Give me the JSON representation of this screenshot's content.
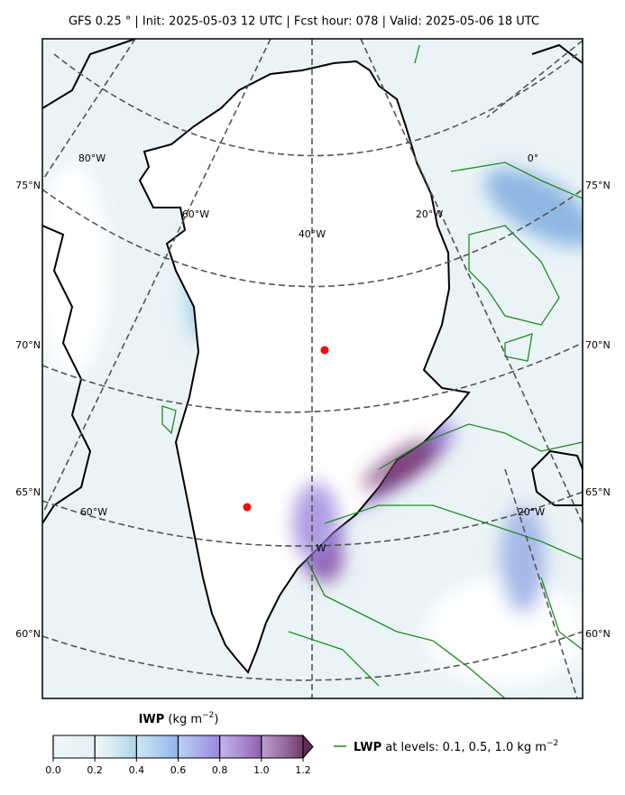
{
  "header": {
    "title": "GFS 0.25 °  |  Init: 2025-05-03 12 UTC  |  Fcst hour: 078  |  Valid: 2025-05-06 18 UTC"
  },
  "map": {
    "lat_labels_left": [
      "75°N",
      "70°N",
      "65°N",
      "60°N"
    ],
    "lat_labels_right": [
      "75°N",
      "70°N",
      "65°N",
      "60°N"
    ],
    "lon_labels": [
      "80°W",
      "60°W",
      "40°W",
      "20°W",
      "0°",
      "60°W",
      "20°W",
      "W"
    ]
  },
  "colorbar": {
    "label": "IWP",
    "unit": " (kg m",
    "unit_exp": "−2",
    "unit_close": ")",
    "range": [
      0,
      1.2
    ],
    "ticks": [
      {
        "value": 0,
        "label": "0.0"
      },
      0.2,
      0.4,
      0.6,
      0.8,
      {
        "value": 1,
        "label": "1.0"
      },
      1.2
    ],
    "colors": [
      "#e3f1f4",
      "#a9d3e8",
      "#8fb2ea",
      "#9a82dc",
      "#8f5cae",
      "#703a66"
    ],
    "extend_color": "#5e2d52"
  },
  "legend": {
    "label": "LWP",
    "text": " at levels: 0.1, 0.5, 1.0  kg m",
    "exp": "−2",
    "color": "#228b22"
  }
}
